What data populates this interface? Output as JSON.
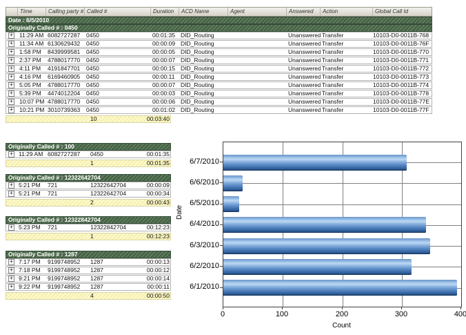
{
  "icons": {
    "expand": "+"
  },
  "colors": {
    "group_band_green": "#4A664E",
    "summary_yellow": "#FBF7C4",
    "bar_blue": "#5B8DC9",
    "header_gray": "#D6D3C9"
  },
  "table": {
    "columns": [
      "",
      "Time",
      "Calling party #",
      "Called #",
      "Duration",
      "ACD Name",
      "Agent",
      "Answered",
      "Action",
      "Global Call Id"
    ],
    "date_band": "Date : 6/5/2010",
    "groups": [
      {
        "title": "Originally Called # : 0450",
        "layout": "wide",
        "rows": [
          {
            "time": "11:29 AM",
            "calling": "6082727287",
            "called": "0450",
            "duration": "00:01:35",
            "acd": "DID_Routing",
            "agent": "",
            "answered": "Unanswered",
            "action": "Transfer",
            "global_id": "10103-D0-0011B-768"
          },
          {
            "time": "11:34 AM",
            "calling": "6130629432",
            "called": "0450",
            "duration": "00:00:09",
            "acd": "DID_Routing",
            "agent": "",
            "answered": "Unanswered",
            "action": "Transfer",
            "global_id": "10103-D0-0011B-76F"
          },
          {
            "time": "1:58 PM",
            "calling": "8439999581",
            "called": "0450",
            "duration": "00:00:05",
            "acd": "DID_Routing",
            "agent": "",
            "answered": "Unanswered",
            "action": "Transfer",
            "global_id": "10103-D0-0011B-770"
          },
          {
            "time": "2:37 PM",
            "calling": "4788017770",
            "called": "0450",
            "duration": "00:00:07",
            "acd": "DID_Routing",
            "agent": "",
            "answered": "Unanswered",
            "action": "Transfer",
            "global_id": "10103-D0-0011B-771"
          },
          {
            "time": "4:11 PM",
            "calling": "4191847701",
            "called": "0450",
            "duration": "00:00:15",
            "acd": "DID_Routing",
            "agent": "",
            "answered": "Unanswered",
            "action": "Transfer",
            "global_id": "10103-D0-0011B-772"
          },
          {
            "time": "4:16 PM",
            "calling": "6169460905",
            "called": "0450",
            "duration": "00:00:11",
            "acd": "DID_Routing",
            "agent": "",
            "answered": "Unanswered",
            "action": "Transfer",
            "global_id": "10103-D0-0011B-773"
          },
          {
            "time": "5:05 PM",
            "calling": "4788017770",
            "called": "0450",
            "duration": "00:00:07",
            "acd": "DID_Routing",
            "agent": "",
            "answered": "Unanswered",
            "action": "Transfer",
            "global_id": "10103-D0-0011B-774"
          },
          {
            "time": "5:39 PM",
            "calling": "4474012204",
            "called": "0450",
            "duration": "00:00:03",
            "acd": "DID_Routing",
            "agent": "",
            "answered": "Unanswered",
            "action": "Transfer",
            "global_id": "10103-D0-0011B-778"
          },
          {
            "time": "10:07 PM",
            "calling": "4788017770",
            "called": "0450",
            "duration": "00:00:06",
            "acd": "DID_Routing",
            "agent": "",
            "answered": "Unanswered",
            "action": "Transfer",
            "global_id": "10103-D0-0011B-77E"
          },
          {
            "time": "10:21 PM",
            "calling": "3010739363",
            "called": "0450",
            "duration": "00:01:02",
            "acd": "DID_Routing",
            "agent": "",
            "answered": "Unanswered",
            "action": "Transfer",
            "global_id": "10103-D0-0011B-77F"
          }
        ],
        "summary": {
          "count": "10",
          "duration": "00:03:40"
        }
      },
      {
        "title": "Originally Called # : 100",
        "layout": "narrow",
        "rows": [
          {
            "time": "11:29 AM",
            "calling": "6082727287",
            "called": "0450",
            "duration": "00:01:35"
          }
        ],
        "summary": {
          "count": "1",
          "duration": "00:01:35"
        }
      },
      {
        "title": "Originally Called # : 12322642704",
        "layout": "narrow",
        "rows": [
          {
            "time": "5:21 PM",
            "calling": "721",
            "called": "12322642704",
            "duration": "00:00:09"
          },
          {
            "time": "5:21 PM",
            "calling": "721",
            "called": "12322642704",
            "duration": "00:00:34"
          }
        ],
        "summary": {
          "count": "2",
          "duration": "00:00:43"
        }
      },
      {
        "title": "Originally Called # : 12322842704",
        "layout": "narrow",
        "rows": [
          {
            "time": "5:23 PM",
            "calling": "721",
            "called": "12322842704",
            "duration": "00:12:23"
          }
        ],
        "summary": {
          "count": "1",
          "duration": "00:12:23"
        }
      },
      {
        "title": "Originally Called # : 1287",
        "layout": "narrow",
        "rows": [
          {
            "time": "7:17 PM",
            "calling": "9199748952",
            "called": "1287",
            "duration": "00:00:13"
          },
          {
            "time": "7:18 PM",
            "calling": "9199748952",
            "called": "1287",
            "duration": "00:00:12"
          },
          {
            "time": "9:21 PM",
            "calling": "9199748952",
            "called": "1287",
            "duration": "00:00:14"
          },
          {
            "time": "9:22 PM",
            "calling": "9199748952",
            "called": "1287",
            "duration": "00:00:11"
          }
        ],
        "summary": {
          "count": "4",
          "duration": "00:00:50"
        }
      }
    ]
  },
  "chart_data": {
    "type": "bar",
    "orientation": "horizontal",
    "categories": [
      "6/7/2010",
      "6/6/2010",
      "6/5/2010",
      "6/4/2010",
      "6/3/2010",
      "6/2/2010",
      "6/1/2010"
    ],
    "values": [
      308,
      32,
      27,
      341,
      348,
      317,
      393
    ],
    "title": "",
    "xlabel": "Count",
    "ylabel": "Date",
    "xlim": [
      0,
      400
    ],
    "x_ticks": [
      0,
      100,
      200,
      300,
      400
    ],
    "grid": true,
    "legend": "none",
    "bar_color": "#5B8DC9"
  }
}
